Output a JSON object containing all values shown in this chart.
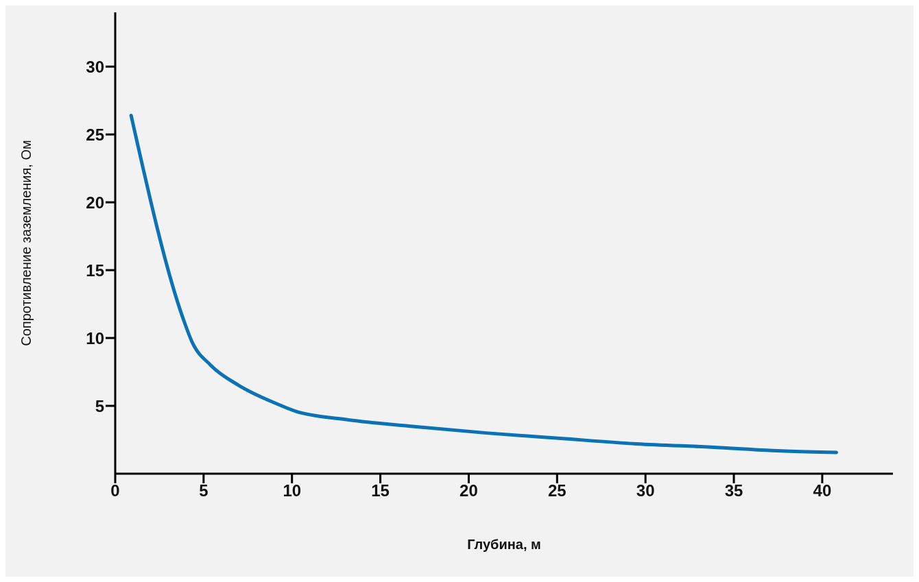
{
  "chart_data": {
    "type": "line",
    "xlabel": "Глубина, м",
    "ylabel": "Сопротивление заземления, Ом",
    "x": [
      0.9,
      3.85,
      4.35,
      5.4,
      7.0,
      9.05,
      10.2,
      13.0,
      16.7,
      21.0,
      25.2,
      29.5,
      33.7,
      37.9,
      40.8
    ],
    "series": [
      {
        "color": "#0a72b5",
        "values": [
          26.4,
          11.4,
          9.7,
          8.0,
          6.5,
          5.2,
          4.6,
          4.0,
          3.5,
          3.0,
          2.6,
          2.2,
          1.96,
          1.67,
          1.57
        ]
      }
    ],
    "xlim": [
      0,
      44
    ],
    "ylim": [
      0,
      34
    ],
    "xticks": [
      0,
      5,
      10,
      15,
      20,
      25,
      30,
      35,
      40
    ],
    "yticks": [
      5,
      10,
      15,
      20,
      25,
      30
    ],
    "grid": false,
    "legend": false
  }
}
